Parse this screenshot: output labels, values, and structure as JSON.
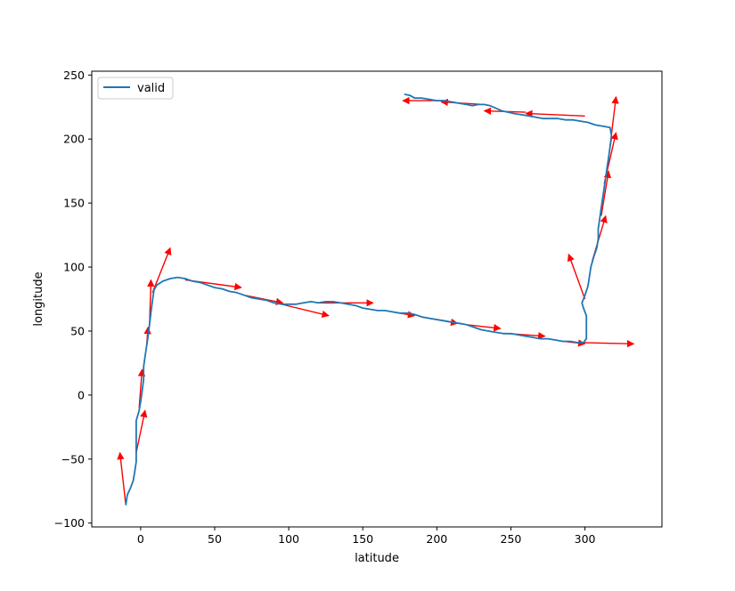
{
  "chart_data": {
    "type": "line",
    "xlabel": "latitude",
    "ylabel": "longitude",
    "xlim": [
      -33,
      352
    ],
    "ylim": [
      -103,
      253
    ],
    "xticks": [
      0,
      50,
      100,
      150,
      200,
      250,
      300
    ],
    "yticks": [
      -100,
      -50,
      0,
      50,
      100,
      150,
      200,
      250
    ],
    "grid": false,
    "legend": {
      "position": "top-left",
      "entries": [
        "valid"
      ]
    },
    "series": [
      {
        "name": "valid",
        "color": "#1f77b4",
        "points": [
          [
            -10,
            -86
          ],
          [
            -9,
            -78
          ],
          [
            -7,
            -73
          ],
          [
            -5,
            -67
          ],
          [
            -4,
            -60
          ],
          [
            -3,
            -52
          ],
          [
            -3,
            -45
          ],
          [
            -3,
            -38
          ],
          [
            -3,
            -28
          ],
          [
            -3,
            -20
          ],
          [
            -1,
            -12
          ],
          [
            0,
            -5
          ],
          [
            1,
            3
          ],
          [
            2,
            12
          ],
          [
            2,
            22
          ],
          [
            3,
            30
          ],
          [
            4,
            38
          ],
          [
            5,
            46
          ],
          [
            6,
            55
          ],
          [
            7,
            65
          ],
          [
            8,
            74
          ],
          [
            9,
            82
          ],
          [
            11,
            86
          ],
          [
            15,
            89
          ],
          [
            20,
            91
          ],
          [
            25,
            92
          ],
          [
            30,
            91
          ],
          [
            35,
            89
          ],
          [
            40,
            88
          ],
          [
            45,
            86
          ],
          [
            50,
            84
          ],
          [
            55,
            83
          ],
          [
            60,
            81
          ],
          [
            65,
            80
          ],
          [
            70,
            78
          ],
          [
            75,
            76
          ],
          [
            80,
            75
          ],
          [
            85,
            74
          ],
          [
            90,
            72
          ],
          [
            95,
            71
          ],
          [
            100,
            71
          ],
          [
            105,
            71
          ],
          [
            110,
            72
          ],
          [
            115,
            73
          ],
          [
            120,
            72
          ],
          [
            125,
            73
          ],
          [
            130,
            73
          ],
          [
            135,
            72
          ],
          [
            140,
            71
          ],
          [
            145,
            70
          ],
          [
            150,
            68
          ],
          [
            155,
            67
          ],
          [
            160,
            66
          ],
          [
            165,
            66
          ],
          [
            170,
            65
          ],
          [
            175,
            64
          ],
          [
            180,
            64
          ],
          [
            185,
            63
          ],
          [
            190,
            61
          ],
          [
            195,
            60
          ],
          [
            200,
            59
          ],
          [
            205,
            58
          ],
          [
            210,
            57
          ],
          [
            215,
            56
          ],
          [
            220,
            55
          ],
          [
            225,
            53
          ],
          [
            230,
            51
          ],
          [
            235,
            50
          ],
          [
            240,
            49
          ],
          [
            245,
            48
          ],
          [
            250,
            48
          ],
          [
            255,
            47
          ],
          [
            260,
            46
          ],
          [
            265,
            45
          ],
          [
            270,
            44
          ],
          [
            275,
            44
          ],
          [
            280,
            43
          ],
          [
            285,
            42
          ],
          [
            290,
            42
          ],
          [
            295,
            41
          ],
          [
            299,
            41
          ],
          [
            301,
            44
          ],
          [
            301,
            52
          ],
          [
            301,
            62
          ],
          [
            299,
            68
          ],
          [
            298,
            72
          ],
          [
            300,
            78
          ],
          [
            302,
            85
          ],
          [
            303,
            92
          ],
          [
            304,
            100
          ],
          [
            306,
            108
          ],
          [
            308,
            115
          ],
          [
            309,
            122
          ],
          [
            309,
            130
          ],
          [
            310,
            138
          ],
          [
            311,
            146
          ],
          [
            312,
            154
          ],
          [
            313,
            162
          ],
          [
            314,
            170
          ],
          [
            315,
            178
          ],
          [
            316,
            186
          ],
          [
            317,
            194
          ],
          [
            318,
            202
          ],
          [
            317,
            209
          ],
          [
            312,
            210
          ],
          [
            307,
            211
          ],
          [
            302,
            213
          ],
          [
            297,
            214
          ],
          [
            292,
            215
          ],
          [
            287,
            215
          ],
          [
            282,
            216
          ],
          [
            277,
            216
          ],
          [
            272,
            216
          ],
          [
            267,
            217
          ],
          [
            262,
            218
          ],
          [
            257,
            219
          ],
          [
            252,
            220
          ],
          [
            248,
            221
          ],
          [
            244,
            222
          ],
          [
            240,
            224
          ],
          [
            236,
            226
          ],
          [
            232,
            227
          ],
          [
            228,
            227
          ],
          [
            224,
            226
          ],
          [
            220,
            227
          ],
          [
            215,
            228
          ],
          [
            210,
            229
          ],
          [
            205,
            230
          ],
          [
            200,
            230
          ],
          [
            195,
            231
          ],
          [
            190,
            232
          ],
          [
            185,
            232
          ],
          [
            182,
            234
          ],
          [
            178,
            235
          ]
        ]
      }
    ],
    "arrows": {
      "color": "#ff0000",
      "segments": [
        [
          -10,
          -86,
          -14,
          -45
        ],
        [
          -3,
          -45,
          3,
          -12
        ],
        [
          -1,
          -10,
          1,
          20
        ],
        [
          4,
          38,
          5,
          53
        ],
        [
          6,
          55,
          7,
          90
        ],
        [
          8,
          80,
          20,
          115
        ],
        [
          30,
          90,
          68,
          84
        ],
        [
          70,
          78,
          96,
          72
        ],
        [
          95,
          71,
          127,
          62
        ],
        [
          120,
          72,
          157,
          72
        ],
        [
          170,
          65,
          185,
          62
        ],
        [
          190,
          61,
          214,
          56
        ],
        [
          220,
          55,
          243,
          52
        ],
        [
          248,
          48,
          273,
          46
        ],
        [
          285,
          42,
          300,
          40
        ],
        [
          298,
          41,
          333,
          40
        ],
        [
          300,
          75,
          289,
          110
        ],
        [
          305,
          105,
          314,
          140
        ],
        [
          311,
          140,
          316,
          175
        ],
        [
          313,
          165,
          321,
          205
        ],
        [
          317,
          195,
          321,
          233
        ],
        [
          300,
          218,
          260,
          220
        ],
        [
          260,
          221,
          232,
          222
        ],
        [
          232,
          227,
          203,
          229
        ],
        [
          205,
          230,
          177,
          230
        ]
      ]
    }
  }
}
